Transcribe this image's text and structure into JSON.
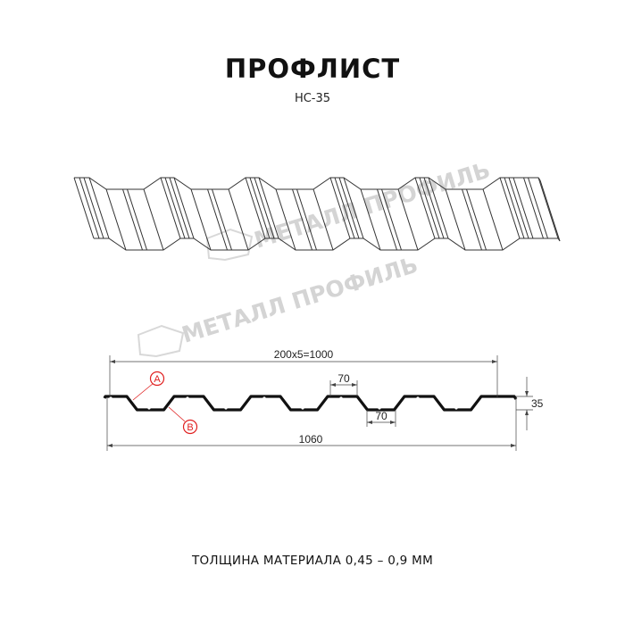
{
  "header": {
    "title": "ПРОФЛИСТ",
    "subtitle": "НС-35"
  },
  "watermark": {
    "text": "МЕТАЛЛ ПРОФИЛЬ",
    "color": "#d4d4d4"
  },
  "section": {
    "dim_pitch": "200x5=1000",
    "dim_top_width": "70",
    "dim_bottom_width": "70",
    "dim_height": "35",
    "dim_total_width": "1060",
    "marker_a": "A",
    "marker_b": "B",
    "marker_color": "#e02020"
  },
  "footer": {
    "text": "ТОЛЩИНА МАТЕРИАЛА 0,45 – 0,9 ММ"
  }
}
